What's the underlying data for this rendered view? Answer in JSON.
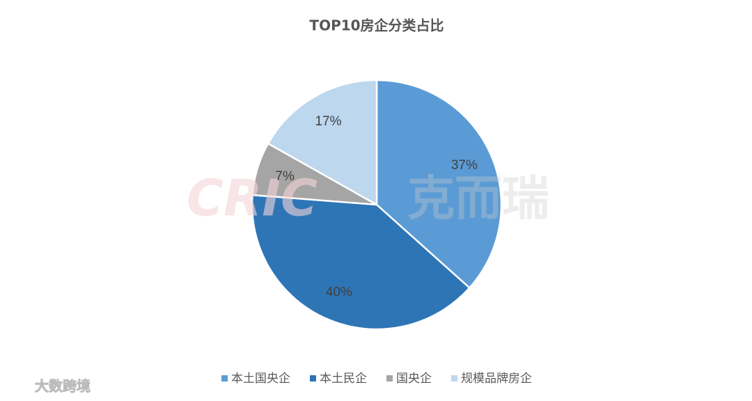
{
  "chart_data": {
    "type": "pie",
    "title": "TOP10房企分类占比",
    "categories": [
      "本土国央企",
      "本土民企",
      "国央企",
      "规模品牌房企"
    ],
    "values": [
      37,
      40,
      7,
      17
    ],
    "value_labels": [
      "37%",
      "40%",
      "7%",
      "17%"
    ],
    "colors": [
      "#5b9bd5",
      "#2e75b6",
      "#a5a5a5",
      "#bdd7ee"
    ],
    "legend": "bottom",
    "watermarks": [
      "CRIC",
      "克而瑞",
      "大数跨境"
    ]
  }
}
